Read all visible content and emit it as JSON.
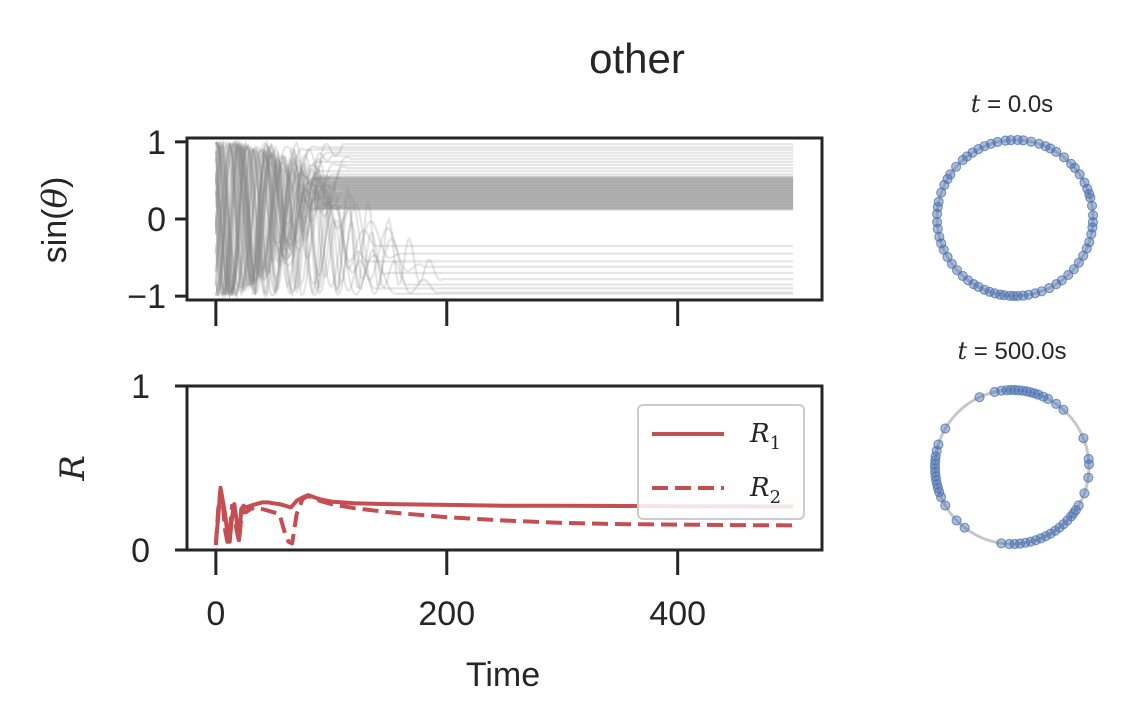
{
  "chart_data": [
    {
      "type": "line",
      "title": "other",
      "ylabel": "sin(θ)",
      "ylabel_parts": {
        "pre": "sin(",
        "sym": "θ",
        "post": ")"
      },
      "xlim": [
        -25,
        525
      ],
      "ylim": [
        -1.05,
        1.05
      ],
      "xticks": [
        0,
        200,
        400
      ],
      "yticks": [
        {
          "value": 1,
          "label": "1"
        },
        {
          "value": 0,
          "label": "0"
        },
        {
          "value": -1,
          "label": "−1"
        }
      ],
      "x_ticklabels_visible": false,
      "grid": false,
      "series_color": "#888888",
      "series_note": "many oscillator traces; after transient they settle to constant levels",
      "settled_levels": [
        0.97,
        0.93,
        0.9,
        0.86,
        0.82,
        0.78,
        0.74,
        0.7,
        0.66,
        0.62,
        0.58,
        0.55,
        0.52,
        0.5,
        0.48,
        0.46,
        0.44,
        0.42,
        0.4,
        0.38,
        0.36,
        0.34,
        0.32,
        0.3,
        0.28,
        0.26,
        0.24,
        0.22,
        0.2,
        0.18,
        0.16,
        0.14,
        0.12,
        -0.35,
        -0.45,
        -0.55,
        -0.62,
        -0.7,
        -0.78,
        -0.85,
        -0.9,
        -0.95,
        -0.97
      ],
      "settle_time": [
        110,
        90,
        80,
        95,
        100,
        120,
        85,
        105,
        115,
        90,
        100,
        95,
        80,
        110,
        90,
        100,
        95,
        85,
        100,
        90,
        110,
        80,
        95,
        100,
        90,
        85,
        100,
        95,
        110,
        90,
        100,
        85,
        120,
        140,
        160,
        130,
        180,
        150,
        200,
        170,
        140,
        190,
        160
      ]
    },
    {
      "type": "line",
      "xlabel": "Time",
      "ylabel": "R",
      "xlim": [
        -25,
        525
      ],
      "ylim": [
        0,
        1
      ],
      "xticks": [
        {
          "value": 0,
          "label": "0"
        },
        {
          "value": 200,
          "label": "200"
        },
        {
          "value": 400,
          "label": "400"
        }
      ],
      "yticks": [
        {
          "value": 1,
          "label": "1"
        },
        {
          "value": 0,
          "label": "0"
        }
      ],
      "grid": false,
      "legend": {
        "placement": "top-right"
      },
      "series": [
        {
          "name": "R₁",
          "name_base": "R",
          "name_sub": "1",
          "style": "solid",
          "color": "#c44e52",
          "x": [
            0,
            2,
            4,
            6,
            8,
            10,
            12,
            14,
            16,
            18,
            20,
            22,
            24,
            26,
            30,
            35,
            40,
            45,
            50,
            55,
            60,
            65,
            70,
            75,
            80,
            90,
            100,
            120,
            150,
            200,
            250,
            300,
            350,
            400,
            450,
            500
          ],
          "y": [
            0.05,
            0.2,
            0.38,
            0.3,
            0.22,
            0.1,
            0.05,
            0.2,
            0.28,
            0.18,
            0.06,
            0.25,
            0.27,
            0.26,
            0.27,
            0.28,
            0.29,
            0.29,
            0.285,
            0.28,
            0.27,
            0.26,
            0.3,
            0.32,
            0.335,
            0.31,
            0.295,
            0.285,
            0.28,
            0.275,
            0.27,
            0.27,
            0.268,
            0.267,
            0.266,
            0.265
          ]
        },
        {
          "name": "R₂",
          "name_base": "R",
          "name_sub": "2",
          "style": "dashed",
          "color": "#c44e52",
          "x": [
            0,
            2,
            4,
            6,
            8,
            10,
            12,
            14,
            16,
            18,
            20,
            22,
            24,
            26,
            30,
            35,
            40,
            45,
            50,
            55,
            60,
            63,
            66,
            70,
            75,
            80,
            90,
            100,
            120,
            150,
            200,
            250,
            300,
            350,
            400,
            450,
            500
          ],
          "y": [
            0.03,
            0.25,
            0.36,
            0.28,
            0.12,
            0.05,
            0.1,
            0.27,
            0.22,
            0.12,
            0.05,
            0.2,
            0.24,
            0.23,
            0.25,
            0.26,
            0.25,
            0.24,
            0.23,
            0.22,
            0.1,
            0.05,
            0.04,
            0.22,
            0.31,
            0.33,
            0.3,
            0.28,
            0.255,
            0.23,
            0.2,
            0.18,
            0.165,
            0.158,
            0.155,
            0.152,
            0.15
          ]
        }
      ]
    },
    {
      "type": "scatter",
      "title": "t = 0.0s",
      "title_parts": {
        "sym": "t",
        "eq": " = ",
        "value": "0.0s"
      },
      "circle_color": "#c8c8c8",
      "point_color": "#4c72b0",
      "angles_deg": [
        2,
        9,
        15,
        18,
        22,
        27,
        34,
        40,
        44,
        51,
        58,
        63,
        67,
        72,
        78,
        84,
        88,
        93,
        97,
        103,
        108,
        113,
        118,
        123,
        128,
        132,
        139,
        146,
        150,
        155,
        161,
        168,
        172,
        177,
        183,
        188,
        194,
        199,
        204,
        210,
        216,
        222,
        228,
        233,
        238,
        242,
        247,
        251,
        255,
        259,
        262,
        266,
        269,
        272,
        276,
        280,
        285,
        290,
        296,
        302,
        307,
        313,
        319,
        325,
        331,
        337,
        342,
        348,
        353,
        357
      ]
    },
    {
      "type": "scatter",
      "title": "t = 500.0s",
      "title_parts": {
        "sym": "t",
        "eq": " = ",
        "value": "500.0s"
      },
      "circle_color": "#c8c8c8",
      "point_color": "#4c72b0",
      "angles_deg": [
        2,
        6,
        22,
        48,
        55,
        62,
        66,
        70,
        73,
        76,
        79,
        82,
        85,
        88,
        91,
        94,
        98,
        103,
        115,
        150,
        163,
        168,
        172,
        175,
        178,
        181,
        184,
        187,
        190,
        193,
        196,
        199,
        203,
        210,
        224,
        232,
        262,
        268,
        272,
        276,
        280,
        284,
        288,
        292,
        296,
        300,
        304,
        308,
        312,
        316,
        320,
        323,
        326,
        330,
        340,
        352
      ]
    }
  ]
}
